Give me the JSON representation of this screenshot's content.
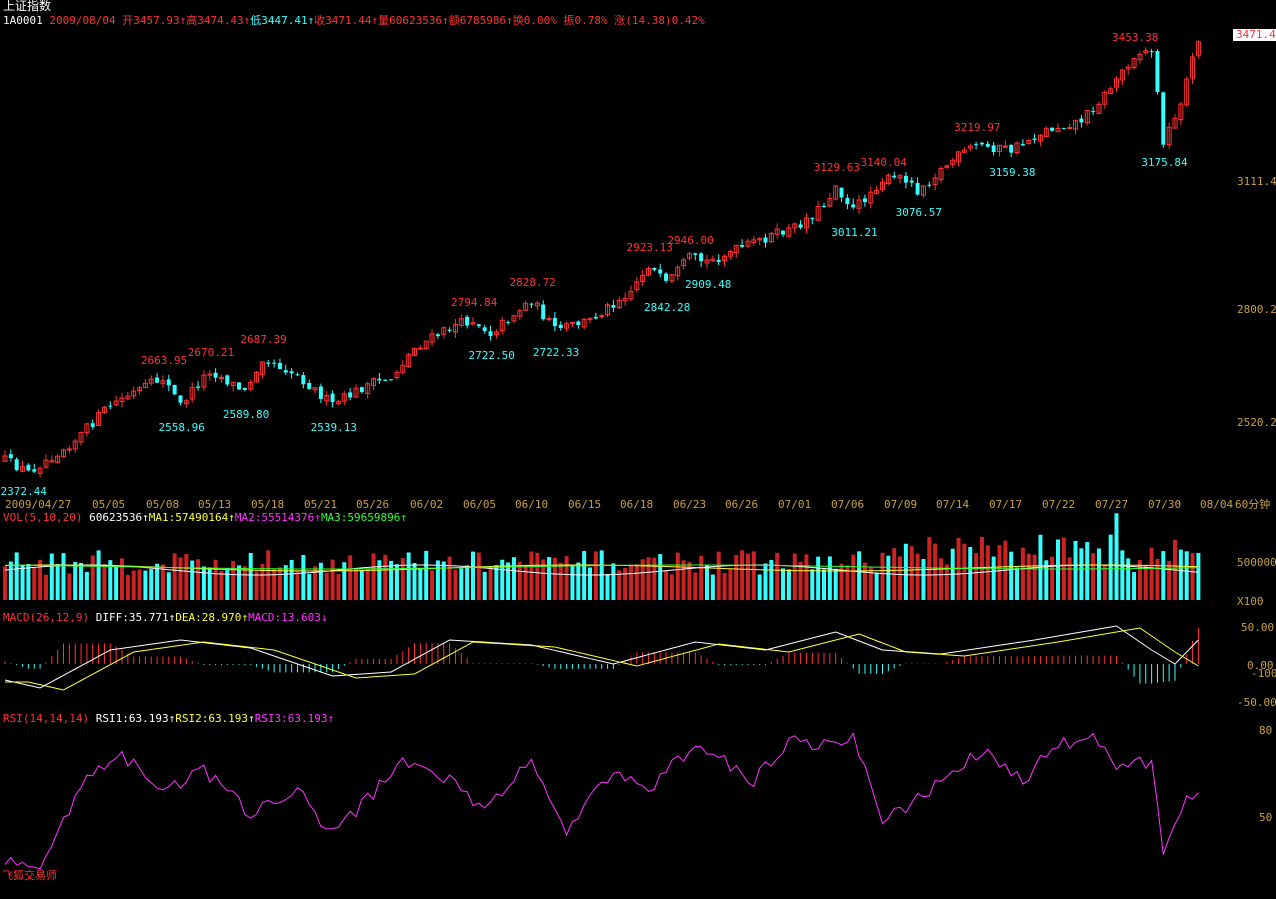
{
  "header": {
    "title": "上证指数",
    "code": "1A0001",
    "date": "2009/08/04",
    "open_label": "开",
    "open": "3457.93",
    "high_label": "高",
    "high": "3474.43",
    "low_label": "低",
    "low": "3447.41",
    "close_label": "收",
    "close": "3471.44",
    "vol_label": "量",
    "vol": "60623536",
    "amount_label": "额",
    "amount": "6785986",
    "turnover_label": "换",
    "turnover": "0.00%",
    "amp_label": "振",
    "amp": "0.78%",
    "change_label": "涨",
    "change": "(14.38)0.42%",
    "arrow": "↑"
  },
  "price_axis": {
    "current": "3471.4",
    "ticks": [
      "3111.4",
      "2800.2",
      "2520.2"
    ],
    "range": [
      2340,
      3500
    ]
  },
  "peak_labels_high": [
    {
      "v": "2663.95",
      "i": 27
    },
    {
      "v": "2670.21",
      "i": 35
    },
    {
      "v": "2687.39",
      "i": 44
    },
    {
      "v": "2794.84",
      "i": 80
    },
    {
      "v": "2828.72",
      "i": 90
    },
    {
      "v": "2923.13",
      "i": 110
    },
    {
      "v": "2946.00",
      "i": 117
    },
    {
      "v": "3129.63",
      "i": 142
    },
    {
      "v": "3140.04",
      "i": 150
    },
    {
      "v": "3219.97",
      "i": 166
    },
    {
      "v": "3453.38",
      "i": 193
    }
  ],
  "peak_labels_low": [
    {
      "v": "2372.44",
      "i": 3
    },
    {
      "v": "2558.96",
      "i": 30
    },
    {
      "v": "2589.80",
      "i": 41
    },
    {
      "v": "2539.13",
      "i": 56
    },
    {
      "v": "2722.50",
      "i": 83
    },
    {
      "v": "2722.33",
      "i": 94
    },
    {
      "v": "2842.28",
      "i": 113
    },
    {
      "v": "2909.48",
      "i": 120
    },
    {
      "v": "3011.21",
      "i": 145
    },
    {
      "v": "3076.57",
      "i": 156
    },
    {
      "v": "3159.38",
      "i": 172
    },
    {
      "v": "3175.84",
      "i": 198
    }
  ],
  "dates": [
    "2009/04/27",
    "05/05",
    "05/08",
    "05/13",
    "05/18",
    "05/21",
    "05/26",
    "06/02",
    "06/05",
    "06/10",
    "06/15",
    "06/18",
    "06/23",
    "06/26",
    "07/01",
    "07/06",
    "07/09",
    "07/14",
    "07/17",
    "07/22",
    "07/27",
    "07/30",
    "08/04"
  ],
  "period": "60分钟",
  "volume": {
    "title": "VOL(5,10,20)",
    "value": "60623536",
    "ma1": "MA1:57490164",
    "ma2": "MA2:55514376",
    "ma3": "MA3:59659896",
    "tick": "500000",
    "unit": "X100"
  },
  "macd": {
    "title": "MACD(26,12,9)",
    "diff": "DIFF:35.771",
    "dea": "DEA:28.970",
    "macd": "MACD:13.603",
    "ticks": [
      "50.00",
      "0.00",
      "-100",
      "-50.00"
    ]
  },
  "rsi": {
    "title": "RSI(14,14,14)",
    "rsi1": "RSI1:63.193",
    "rsi2": "RSI2:63.193",
    "rsi3": "RSI3:63.193",
    "ticks": [
      "80",
      "50"
    ]
  },
  "footer": {
    "brand": "飞狐交易师"
  },
  "colors": {
    "up": "#ff3333",
    "down": "#33ffff",
    "text": "#ffffff",
    "axis": "#c8a040",
    "ma1": "#ffffff",
    "ma2": "#ffff33",
    "rsi": "#ff33ff"
  }
}
